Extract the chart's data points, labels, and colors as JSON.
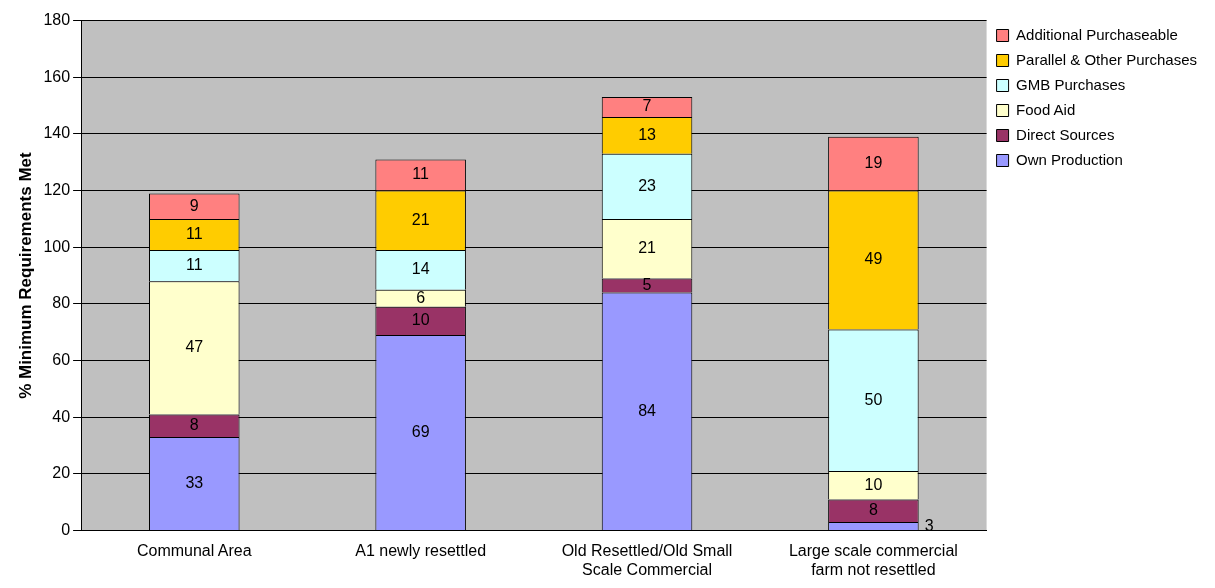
{
  "chart_data": {
    "type": "bar",
    "stacked": true,
    "ylabel": "% Minimum Requirements Met",
    "categories": [
      "Communal Area",
      "A1 newly resettled",
      "Old Resettled/Old Small Scale Commercial",
      "Large scale commercial farm not resettled"
    ],
    "series": [
      {
        "name": "Own Production",
        "color": "#9999ff",
        "values": [
          33,
          69,
          84,
          3
        ]
      },
      {
        "name": "Direct Sources",
        "color": "#993366",
        "values": [
          8,
          10,
          5,
          8
        ]
      },
      {
        "name": "Food Aid",
        "color": "#ffffcc",
        "values": [
          47,
          6,
          21,
          10
        ]
      },
      {
        "name": "GMB Purchases",
        "color": "#ccffff",
        "values": [
          11,
          14,
          23,
          50
        ]
      },
      {
        "name": "Parallel & Other Purchases",
        "color": "#ffcc00",
        "values": [
          11,
          21,
          13,
          49
        ]
      },
      {
        "name": "Additional Purchaseable",
        "color": "#ff8080",
        "values": [
          9,
          11,
          7,
          19
        ]
      }
    ],
    "ylim": [
      0,
      180
    ],
    "yticks": [
      0,
      20,
      40,
      60,
      80,
      100,
      120,
      140,
      160,
      180
    ],
    "grid": "y",
    "legend": "top right",
    "data_labels": true
  }
}
